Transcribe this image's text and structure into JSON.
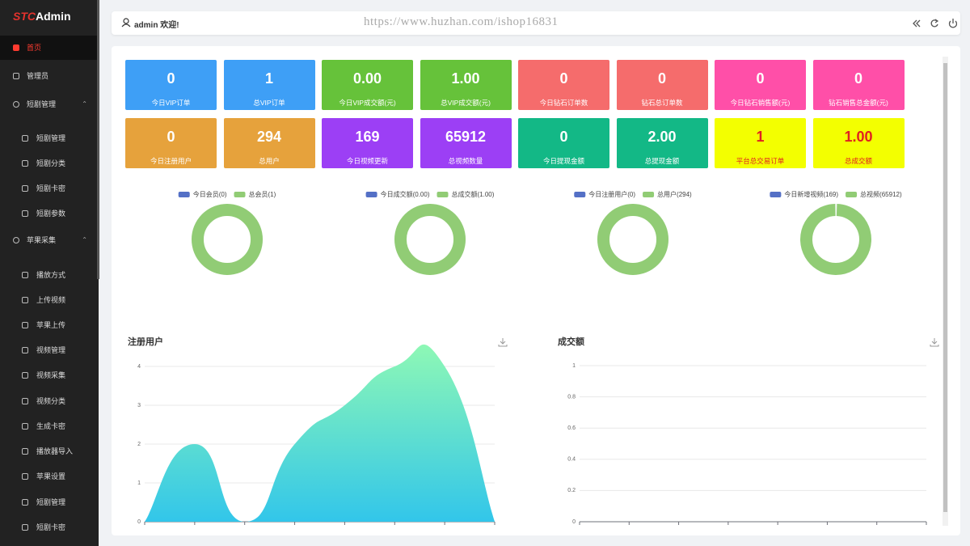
{
  "sidebar": {
    "logo": {
      "accent": "STC",
      "text": "Admin"
    },
    "items": [
      {
        "label": "首页",
        "active": true
      },
      {
        "label": "管理员"
      },
      {
        "label": "短剧管理",
        "group": true
      },
      {
        "label": "短剧管理",
        "sub": true
      },
      {
        "label": "短剧分类",
        "sub": true
      },
      {
        "label": "短剧卡密",
        "sub": true
      },
      {
        "label": "短剧参数",
        "sub": true
      },
      {
        "label": "苹果采集",
        "group": true
      },
      {
        "label": "播放方式",
        "sub": true
      },
      {
        "label": "上传视频",
        "sub": true
      },
      {
        "label": "苹果上传",
        "sub": true
      },
      {
        "label": "视频管理",
        "sub": true
      },
      {
        "label": "视频采集",
        "sub": true
      },
      {
        "label": "视频分类",
        "sub": true
      },
      {
        "label": "生成卡密",
        "sub": true
      },
      {
        "label": "播放器导入",
        "sub": true
      },
      {
        "label": "苹果设置",
        "sub": true
      },
      {
        "label": "短剧管理",
        "sub": true
      },
      {
        "label": "短剧卡密",
        "sub": true
      }
    ]
  },
  "header": {
    "user": "admin 欢迎!",
    "watermark": "https://www.huzhan.com/ishop16831"
  },
  "cards": [
    {
      "value": "0",
      "label": "今日VIP订单",
      "color": "#3e9ff6"
    },
    {
      "value": "1",
      "label": "总VIP订单",
      "color": "#3e9ff6"
    },
    {
      "value": "0.00",
      "label": "今日VIP成交额(元)",
      "color": "#66c23a"
    },
    {
      "value": "1.00",
      "label": "总VIP成交额(元)",
      "color": "#66c23a"
    },
    {
      "value": "0",
      "label": "今日钻石订单数",
      "color": "#f56c6c"
    },
    {
      "value": "0",
      "label": "钻石总订单数",
      "color": "#f56c6c"
    },
    {
      "value": "0",
      "label": "今日钻石销售额(元)",
      "color": "#ff4fa8"
    },
    {
      "value": "0",
      "label": "钻石销售总金额(元)",
      "color": "#ff4fa8"
    },
    {
      "value": "0",
      "label": "今日注册用户",
      "color": "#e6a23c"
    },
    {
      "value": "294",
      "label": "总用户",
      "color": "#e6a23c"
    },
    {
      "value": "169",
      "label": "今日视频更新",
      "color": "#9c3ff5"
    },
    {
      "value": "65912",
      "label": "总视频数量",
      "color": "#9c3ff5"
    },
    {
      "value": "0",
      "label": "今日提现金额",
      "color": "#13b886"
    },
    {
      "value": "2.00",
      "label": "总提现金额",
      "color": "#13b886"
    },
    {
      "value": "1",
      "label": "平台总交易订单",
      "color": "#f3ff00",
      "text_color": "#e02020"
    },
    {
      "value": "1.00",
      "label": "总成交额",
      "color": "#f3ff00",
      "text_color": "#e02020"
    }
  ],
  "donuts": [
    {
      "series": [
        {
          "name": "今日会员(0)",
          "color": "#5470c6",
          "value": 0
        },
        {
          "name": "总会员(1)",
          "color": "#91cc75",
          "value": 1
        }
      ]
    },
    {
      "series": [
        {
          "name": "今日成交额(0.00)",
          "color": "#5470c6",
          "value": 0
        },
        {
          "name": "总成交额(1.00)",
          "color": "#91cc75",
          "value": 1
        }
      ]
    },
    {
      "series": [
        {
          "name": "今日注册用户(0)",
          "color": "#5470c6",
          "value": 0
        },
        {
          "name": "总用户(294)",
          "color": "#91cc75",
          "value": 294
        }
      ]
    },
    {
      "series": [
        {
          "name": "今日新增视频(169)",
          "color": "#5470c6",
          "value": 169
        },
        {
          "name": "总视频(65912)",
          "color": "#91cc75",
          "value": 65912
        }
      ]
    }
  ],
  "charts": [
    {
      "title": "注册用户",
      "type": "area",
      "categories": [
        null,
        null,
        null,
        null,
        null,
        null,
        null,
        null
      ],
      "values": [
        0,
        2,
        0,
        2,
        3,
        4,
        4,
        0
      ],
      "ylim": [
        0,
        4
      ],
      "yticks": [
        0,
        1,
        2,
        3,
        4
      ]
    },
    {
      "title": "成交额",
      "type": "line",
      "ylim": [
        0,
        1
      ],
      "yticks": [
        0,
        0.2,
        0.4,
        0.6,
        0.8,
        1
      ]
    }
  ]
}
